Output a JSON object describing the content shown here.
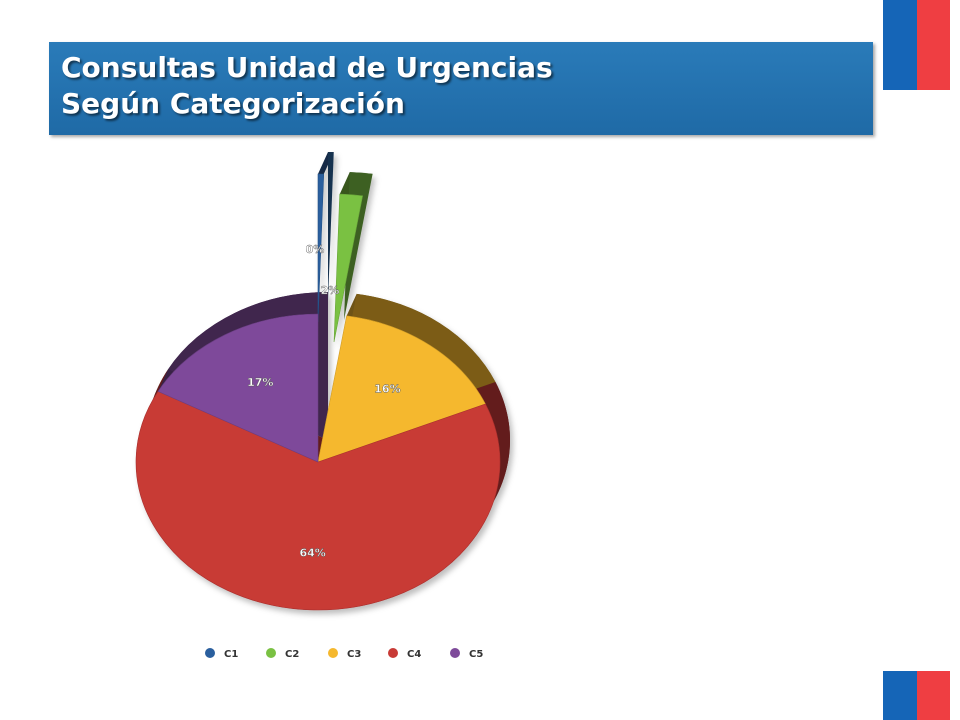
{
  "header": {
    "title_line1": "Consultas Unidad de Urgencias",
    "title_line2": "Según Categorización"
  },
  "colors": {
    "banner": "#1f6aa6",
    "flag_blue": "#1565b7",
    "flag_red": "#ef3e42"
  },
  "chart_data": {
    "type": "pie",
    "title": "",
    "legend_position": "bottom",
    "categories": [
      "C1",
      "C2",
      "C3",
      "C4",
      "C5"
    ],
    "values": [
      0.5,
      2,
      16,
      64,
      17
    ],
    "labels": [
      "0%",
      "2%",
      "16%",
      "64%",
      "17%"
    ],
    "colors": [
      "#2a5f9e",
      "#7ac143",
      "#f5b82e",
      "#c83a36",
      "#7e4a9a"
    ],
    "exploded": [
      "C1",
      "C2"
    ],
    "style": "3d"
  }
}
